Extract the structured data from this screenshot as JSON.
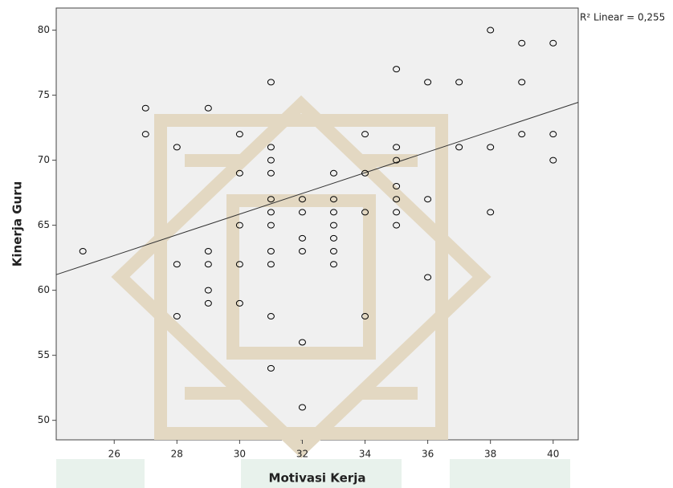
{
  "chart_data": {
    "type": "scatter",
    "x_label": "Motivasi Kerja",
    "y_label": "Kinerja Guru",
    "annotation": "R² Linear = 0,255",
    "x": [
      25,
      27,
      27,
      28,
      28,
      28,
      29,
      29,
      29,
      29,
      29,
      30,
      30,
      30,
      30,
      30,
      31,
      31,
      31,
      31,
      31,
      31,
      31,
      31,
      31,
      31,
      31,
      32,
      32,
      32,
      32,
      32,
      32,
      33,
      33,
      33,
      33,
      33,
      33,
      33,
      34,
      34,
      34,
      34,
      35,
      35,
      35,
      35,
      35,
      35,
      35,
      36,
      36,
      36,
      37,
      37,
      38,
      38,
      38,
      39,
      39,
      39,
      40,
      40,
      40
    ],
    "values": [
      63,
      74,
      72,
      71,
      62,
      58,
      74,
      63,
      62,
      60,
      59,
      72,
      69,
      65,
      62,
      59,
      76,
      71,
      70,
      69,
      67,
      66,
      65,
      63,
      62,
      58,
      54,
      67,
      66,
      64,
      63,
      56,
      51,
      69,
      67,
      66,
      65,
      64,
      63,
      62,
      72,
      69,
      66,
      58,
      77,
      71,
      70,
      68,
      67,
      66,
      65,
      76,
      67,
      61,
      76,
      71,
      80,
      71,
      66,
      79,
      76,
      72,
      79,
      72,
      70
    ],
    "color": "#000000",
    "fit_line": {
      "x": [
        24.15,
        40.8
      ],
      "y": [
        61.2,
        74.45
      ],
      "color": "#333333"
    },
    "xlim": [
      24.15,
      40.8
    ],
    "ylim": [
      48.5,
      81.7
    ],
    "xticks": [
      26,
      28,
      30,
      32,
      34,
      36,
      38,
      40
    ],
    "yticks": [
      50,
      55,
      60,
      65,
      70,
      75,
      80
    ]
  }
}
